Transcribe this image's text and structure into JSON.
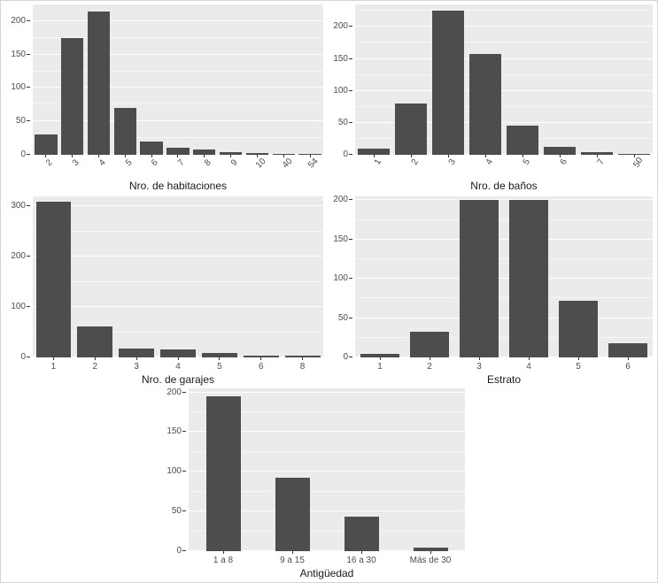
{
  "theme": {
    "bar_color": "#4d4d4d",
    "panel_bg": "#ebebeb",
    "grid_major_color": "#ffffff",
    "grid_minor_color": "rgba(255,255,255,0.55)",
    "axis_text_color": "#4d4d4d",
    "axis_title_color": "#1a1a1a"
  },
  "chart_data": [
    {
      "type": "bar",
      "title": "",
      "xlabel": "Nro. de habitaciones",
      "ylabel": "",
      "categories": [
        "2",
        "3",
        "4",
        "5",
        "6",
        "7",
        "8",
        "9",
        "10",
        "40",
        "54"
      ],
      "values": [
        30,
        175,
        215,
        70,
        20,
        10,
        8,
        4,
        3,
        2,
        2
      ],
      "yticks": [
        0,
        50,
        100,
        150,
        200
      ],
      "ylim": [
        0,
        225
      ],
      "grid": true,
      "tick_rotation": 45,
      "bar_width": 0.85
    },
    {
      "type": "bar",
      "title": "",
      "xlabel": "Nro. de baños",
      "ylabel": "",
      "categories": [
        "1",
        "2",
        "3",
        "4",
        "5",
        "6",
        "7",
        "50"
      ],
      "values": [
        10,
        80,
        225,
        157,
        45,
        12,
        4,
        2
      ],
      "yticks": [
        0,
        50,
        100,
        150,
        200
      ],
      "ylim": [
        0,
        235
      ],
      "grid": true,
      "tick_rotation": 60,
      "bar_width": 0.85
    },
    {
      "type": "bar",
      "title": "",
      "xlabel": "Nro. de garajes",
      "ylabel": "",
      "categories": [
        "1",
        "2",
        "3",
        "4",
        "5",
        "6",
        "8"
      ],
      "values": [
        310,
        62,
        18,
        15,
        8,
        4,
        3
      ],
      "yticks": [
        0,
        100,
        200,
        300
      ],
      "ylim": [
        0,
        320
      ],
      "grid": true,
      "tick_rotation": 0,
      "bar_width": 0.85
    },
    {
      "type": "bar",
      "title": "",
      "xlabel": "Estrato",
      "ylabel": "",
      "categories": [
        "1",
        "2",
        "3",
        "4",
        "5",
        "6"
      ],
      "values": [
        4,
        33,
        200,
        200,
        72,
        18
      ],
      "yticks": [
        0,
        50,
        100,
        150,
        200
      ],
      "ylim": [
        0,
        205
      ],
      "grid": true,
      "tick_rotation": 0,
      "bar_width": 0.8
    },
    {
      "type": "bar",
      "title": "",
      "xlabel": "Antigüedad",
      "ylabel": "",
      "categories": [
        "1 a 8",
        "9 a 15",
        "16 a 30",
        "Más de 30"
      ],
      "values": [
        195,
        92,
        43,
        4
      ],
      "yticks": [
        0,
        50,
        100,
        150,
        200
      ],
      "ylim": [
        0,
        205
      ],
      "grid": true,
      "tick_rotation": 0,
      "bar_width": 0.5
    }
  ]
}
